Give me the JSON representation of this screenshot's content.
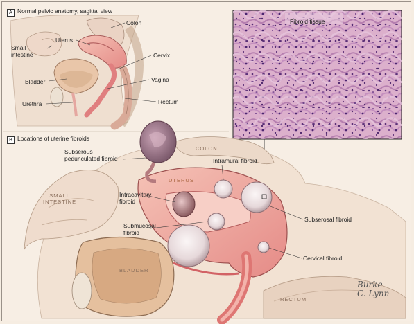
{
  "panel_a": {
    "letter": "A",
    "caption": "Normal pelvic anatomy, sagittal view",
    "labels": {
      "colon": "Colon",
      "uterus": "Uterus",
      "small_intestine": "Small\nintestine",
      "cervix": "Cervix",
      "bladder": "Bladder",
      "vagina": "Vagina",
      "urethra": "Urethra",
      "rectum": "Rectum"
    }
  },
  "panel_b": {
    "letter": "B",
    "caption": "Locations of uterine fibroids",
    "labels": {
      "subserous_pedunculated": "Subserous\npedunculated fibroid",
      "intramural": "Intramural fibroid",
      "intracavitary": "Intracavitary\nfibroid",
      "submucosal": "Submucosal\nfibroid",
      "subserosal": "Subserosal fibroid",
      "cervical": "Cervical fibroid"
    },
    "organs": {
      "colon": "COLON",
      "uterus": "UTERUS",
      "small_intestine": "SMALL\nINTESTINE",
      "bladder": "BLADDER",
      "rectum": "RECTUM"
    }
  },
  "histology": {
    "label": "Fibroid tissue"
  },
  "signature": "Burke\nC. Lynn",
  "colors": {
    "tissue_pink": "#e89a96",
    "uterus_wall": "#f0b3a8",
    "fibroid_pale": "#e9dfe0",
    "histo_bg": "#d9a8c8",
    "outline": "#5a4a40"
  }
}
